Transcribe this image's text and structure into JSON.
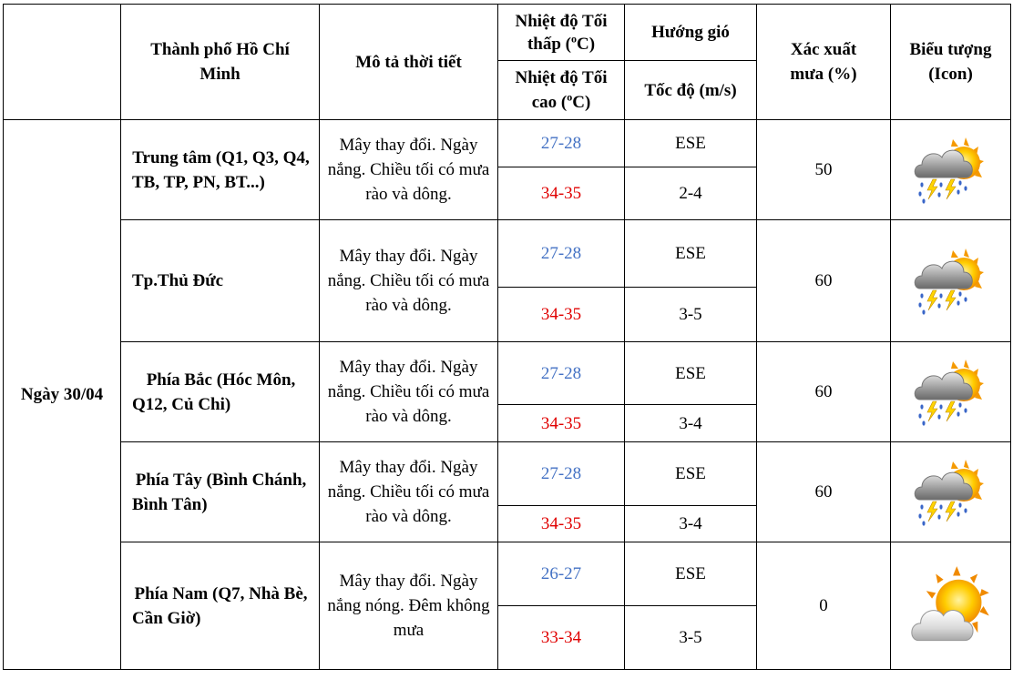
{
  "headers": {
    "city": "Thành phố Hồ Chí Minh",
    "description": "Mô tả thời tiết",
    "temp_low": "Nhiệt độ Tối thấp (",
    "temp_high": "Nhiệt độ Tối cao (",
    "temp_unit_sup": "o",
    "temp_unit": "C)",
    "wind_dir": "Hướng gió",
    "wind_speed": "Tốc độ (m/s)",
    "rain_prob": "Xác xuất mưa (%)",
    "icon": "Biểu tượng (Icon)"
  },
  "date": "Ngày 30/04",
  "rows": [
    {
      "area": "Trung tâm (Q1, Q3, Q4, TB, TP, PN, BT...)",
      "description": "Mây thay đổi. Ngày nắng. Chiều tối có mưa rào và dông.",
      "temp_low": "27-28",
      "temp_high": "34-35",
      "wind_dir": "ESE",
      "wind_speed": "2-4",
      "rain_prob": "50",
      "icon": "thunderstorm-sun-icon"
    },
    {
      "area": "Tp.Thủ Đức",
      "description": "Mây thay đổi. Ngày nắng. Chiều tối có mưa rào và dông.",
      "temp_low": "27-28",
      "temp_high": "34-35",
      "wind_dir": "ESE",
      "wind_speed": "3-5",
      "rain_prob": "60",
      "icon": "thunderstorm-sun-icon"
    },
    {
      "area": "Phía Bắc (Hóc Môn, Q12, Củ Chi)",
      "description": "Mây thay đổi. Ngày nắng. Chiều tối có mưa rào và dông.",
      "temp_low": "27-28",
      "temp_high": "34-35",
      "wind_dir": "ESE",
      "wind_speed": "3-4",
      "rain_prob": "60",
      "icon": "thunderstorm-sun-icon"
    },
    {
      "area": "Phía Tây (Bình Chánh, Bình Tân)",
      "description": "Mây thay đổi. Ngày nắng. Chiều tối có mưa rào và dông.",
      "temp_low": "27-28",
      "temp_high": "34-35",
      "wind_dir": "ESE",
      "wind_speed": "3-4",
      "rain_prob": "60",
      "icon": "thunderstorm-sun-icon"
    },
    {
      "area": "Phía Nam (Q7, Nhà Bè, Cần Giờ)",
      "description": "Mây thay đổi. Ngày nắng nóng. Đêm không mưa",
      "temp_low": "26-27",
      "temp_high": "33-34",
      "wind_dir": "ESE",
      "wind_speed": "3-5",
      "rain_prob": "0",
      "icon": "sun-cloud-icon"
    }
  ],
  "colors": {
    "temp_low": "#4472c4",
    "temp_high": "#e00000"
  }
}
